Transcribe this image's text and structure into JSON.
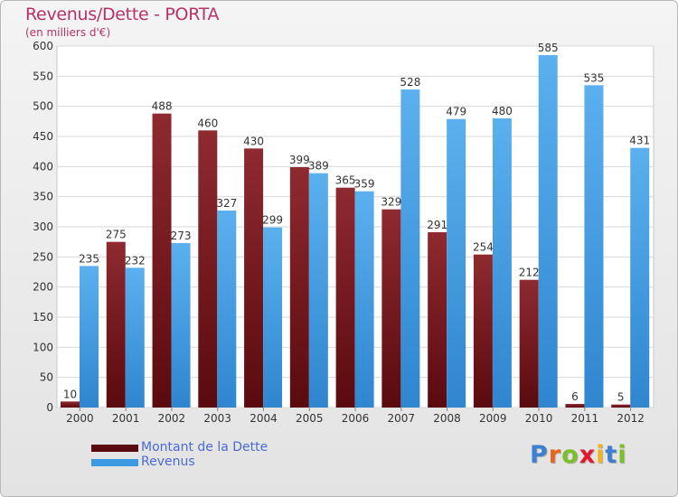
{
  "title": "Revenus/Dette - PORTA",
  "subtitle": "(en milliers d'€)",
  "logo": {
    "text": "Proxiti",
    "letter_colors": [
      "#3d7fd1",
      "#e8651b",
      "#7bbf2a",
      "#e3172b",
      "#f3b21a",
      "#3d7fd1",
      "#7bbf2a"
    ]
  },
  "chart_data": {
    "type": "bar",
    "title": "Revenus/Dette - PORTA",
    "ylabel": "(en milliers d'€)",
    "categories": [
      "2000",
      "2001",
      "2002",
      "2003",
      "2004",
      "2005",
      "2006",
      "2007",
      "2008",
      "2009",
      "2010",
      "2011",
      "2012"
    ],
    "series": [
      {
        "name": "Montant de la Dette",
        "color": "#7a1a1e",
        "values": [
          10,
          275,
          488,
          460,
          430,
          399,
          365,
          329,
          291,
          254,
          212,
          6,
          5
        ]
      },
      {
        "name": "Revenus",
        "color": "#3b9be2",
        "values": [
          235,
          232,
          273,
          327,
          299,
          389,
          359,
          528,
          479,
          480,
          585,
          535,
          431
        ]
      }
    ],
    "ylim": [
      0,
      600
    ],
    "yticks": [
      "0",
      "50",
      "100",
      "150",
      "200",
      "250",
      "300",
      "350",
      "400",
      "450",
      "500",
      "550",
      "600"
    ],
    "grid": true,
    "legend": "bottom-left"
  }
}
